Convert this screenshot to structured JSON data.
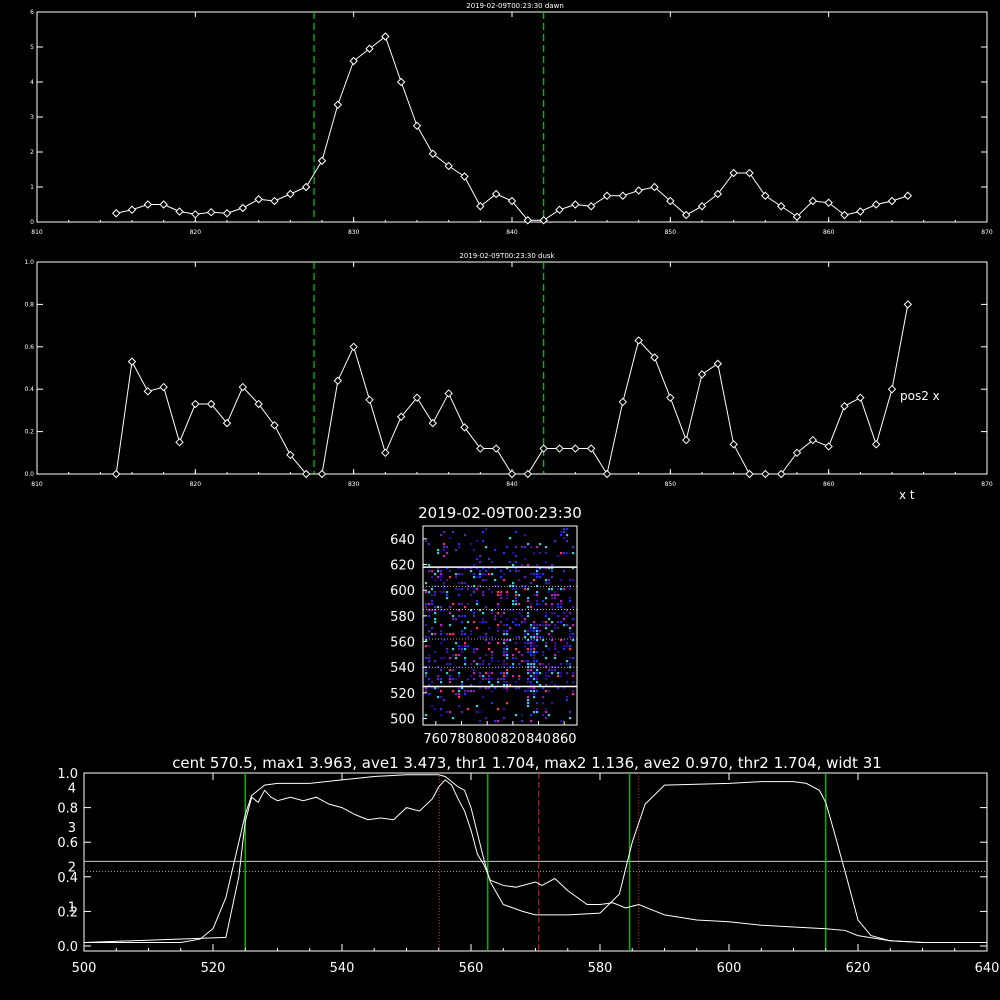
{
  "chart_data": [
    {
      "type": "line",
      "title": "2019-02-09T00:23:30 dawn",
      "xlim": [
        810,
        870
      ],
      "ylim": [
        0,
        6
      ],
      "x_ticks": [
        "810",
        "820",
        "830",
        "840",
        "850",
        "860",
        "870"
      ],
      "y_ticks": [
        "0",
        "1",
        "2",
        "3",
        "4",
        "5",
        "6"
      ],
      "vlines": [
        827.5,
        842.0
      ],
      "markers": "diamond",
      "series": [
        {
          "x": [
            815,
            816,
            817,
            818,
            819,
            820,
            821,
            822,
            823,
            824,
            825,
            826,
            827,
            828,
            829,
            830,
            831,
            832,
            833,
            834,
            835,
            836,
            837,
            838,
            839,
            840,
            841,
            842,
            843,
            844,
            845,
            846,
            847,
            848,
            849,
            850,
            851,
            852,
            853,
            854,
            855,
            856,
            857,
            858,
            859,
            860,
            861,
            862,
            863,
            864,
            865
          ],
          "y": [
            0.25,
            0.35,
            0.5,
            0.5,
            0.3,
            0.22,
            0.28,
            0.25,
            0.4,
            0.65,
            0.6,
            0.8,
            1.0,
            1.75,
            3.35,
            4.6,
            4.95,
            5.3,
            4.0,
            2.75,
            1.95,
            1.6,
            1.3,
            0.45,
            0.8,
            0.6,
            0.05,
            0.05,
            0.35,
            0.5,
            0.45,
            0.75,
            0.75,
            0.9,
            1.0,
            0.6,
            0.2,
            0.45,
            0.8,
            1.4,
            1.4,
            0.75,
            0.45,
            0.15,
            0.6,
            0.55,
            0.2,
            0.3,
            0.5,
            0.6,
            0.75
          ]
        }
      ]
    },
    {
      "type": "line",
      "title": "2019-02-09T00:23:30 dusk",
      "xlim": [
        810,
        870
      ],
      "ylim": [
        0,
        1
      ],
      "x_ticks": [
        "810",
        "820",
        "830",
        "840",
        "850",
        "860",
        "870"
      ],
      "y_ticks": [
        "0.0",
        "0.2",
        "0.4",
        "0.6",
        "0.8",
        "1.0"
      ],
      "vlines": [
        827.5,
        842.0
      ],
      "markers": "diamond",
      "annotations": [
        "pos2 x",
        "x t"
      ],
      "series": [
        {
          "x": [
            815,
            816,
            817,
            818,
            819,
            820,
            821,
            822,
            823,
            824,
            825,
            826,
            827,
            828,
            829,
            830,
            831,
            832,
            833,
            834,
            835,
            836,
            837,
            838,
            839,
            840,
            841,
            842,
            843,
            844,
            845,
            846,
            847,
            848,
            849,
            850,
            851,
            852,
            853,
            854,
            855,
            856,
            857,
            858,
            859,
            860,
            861,
            862,
            863,
            864,
            865
          ],
          "y": [
            0.0,
            0.53,
            0.39,
            0.41,
            0.15,
            0.33,
            0.33,
            0.24,
            0.41,
            0.33,
            0.23,
            0.09,
            0.0,
            0.0,
            0.44,
            0.6,
            0.35,
            0.1,
            0.27,
            0.36,
            0.24,
            0.38,
            0.22,
            0.12,
            0.12,
            0.0,
            0.0,
            0.12,
            0.12,
            0.12,
            0.12,
            0.0,
            0.34,
            0.63,
            0.55,
            0.36,
            0.16,
            0.47,
            0.52,
            0.14,
            0.0,
            0.0,
            0.0,
            0.1,
            0.16,
            0.13,
            0.32,
            0.36,
            0.14,
            0.4,
            0.8
          ]
        }
      ]
    },
    {
      "type": "heatmap",
      "title": "2019-02-09T00:23:30",
      "xlim": [
        750,
        870
      ],
      "ylim": [
        495,
        650
      ],
      "x_ticks": [
        "760",
        "780",
        "800",
        "820",
        "840",
        "860"
      ],
      "y_ticks": [
        "500",
        "520",
        "540",
        "560",
        "580",
        "600",
        "620",
        "640"
      ],
      "hlines_solid": [
        525,
        618
      ],
      "hlines_dotted": [
        540,
        562,
        585,
        603
      ]
    },
    {
      "type": "line",
      "title": "cent 570.5, max1 3.963, ave1 3.473, thr1 1.704, max2 1.136, ave2 0.970, thr2 1.704, widt 31",
      "xlim": [
        500,
        640
      ],
      "ylim": [
        0,
        1
      ],
      "x_ticks": [
        "500",
        "520",
        "540",
        "560",
        "580",
        "600",
        "620",
        "640"
      ],
      "y_ticks_left": [
        "0.0",
        "0.2",
        "0.4",
        "0.6",
        "0.8",
        "1.0"
      ],
      "y_ticks_left2": [
        "1",
        "2",
        "3",
        "4"
      ],
      "green_vlines": [
        525,
        562.6,
        584.6,
        615
      ],
      "red_dotted_vlines": [
        555.1,
        586
      ],
      "red_dashed_vline": 570.5,
      "hline_solid": 0.489,
      "hline_dotted": 0.43,
      "series": [
        {
          "name": "",
          "x": [
            500,
            510,
            515,
            518,
            520,
            522,
            524,
            525,
            526,
            528,
            530,
            535,
            540,
            545,
            550,
            553,
            555,
            556,
            557,
            558,
            559,
            560,
            561,
            562,
            563,
            565,
            568,
            570,
            575,
            580,
            583,
            585,
            587,
            590,
            600,
            605,
            610,
            612,
            613,
            614,
            615,
            616,
            618,
            620,
            622,
            625,
            630,
            640
          ],
          "y": [
            0.02,
            0.02,
            0.02,
            0.04,
            0.1,
            0.28,
            0.6,
            0.76,
            0.87,
            0.93,
            0.94,
            0.94,
            0.96,
            0.98,
            0.99,
            0.99,
            0.99,
            0.98,
            0.95,
            0.92,
            0.9,
            0.8,
            0.65,
            0.5,
            0.37,
            0.24,
            0.2,
            0.18,
            0.18,
            0.19,
            0.3,
            0.6,
            0.82,
            0.93,
            0.94,
            0.95,
            0.95,
            0.94,
            0.92,
            0.9,
            0.83,
            0.7,
            0.43,
            0.15,
            0.06,
            0.03,
            0.02,
            0.02
          ]
        },
        {
          "name": "",
          "x": [
            500,
            522,
            524,
            525,
            526,
            527,
            528,
            529,
            530,
            532,
            534,
            536,
            538,
            540,
            542,
            544,
            546,
            548,
            550,
            552,
            554,
            555,
            556,
            557,
            558,
            559,
            560,
            561,
            562,
            563,
            565,
            567,
            569,
            570,
            571,
            573,
            575,
            578,
            580,
            582,
            584,
            586,
            588,
            590,
            595,
            600,
            605,
            610,
            615,
            618,
            620,
            625,
            630,
            640
          ],
          "y": [
            0.02,
            0.05,
            0.4,
            0.72,
            0.86,
            0.83,
            0.9,
            0.86,
            0.84,
            0.86,
            0.84,
            0.86,
            0.82,
            0.8,
            0.76,
            0.73,
            0.74,
            0.73,
            0.8,
            0.78,
            0.85,
            0.92,
            0.96,
            0.93,
            0.85,
            0.78,
            0.67,
            0.53,
            0.47,
            0.38,
            0.35,
            0.34,
            0.36,
            0.37,
            0.35,
            0.39,
            0.32,
            0.24,
            0.24,
            0.25,
            0.22,
            0.24,
            0.21,
            0.18,
            0.15,
            0.14,
            0.12,
            0.11,
            0.1,
            0.09,
            0.06,
            0.03,
            0.02,
            0.02
          ]
        }
      ]
    }
  ]
}
